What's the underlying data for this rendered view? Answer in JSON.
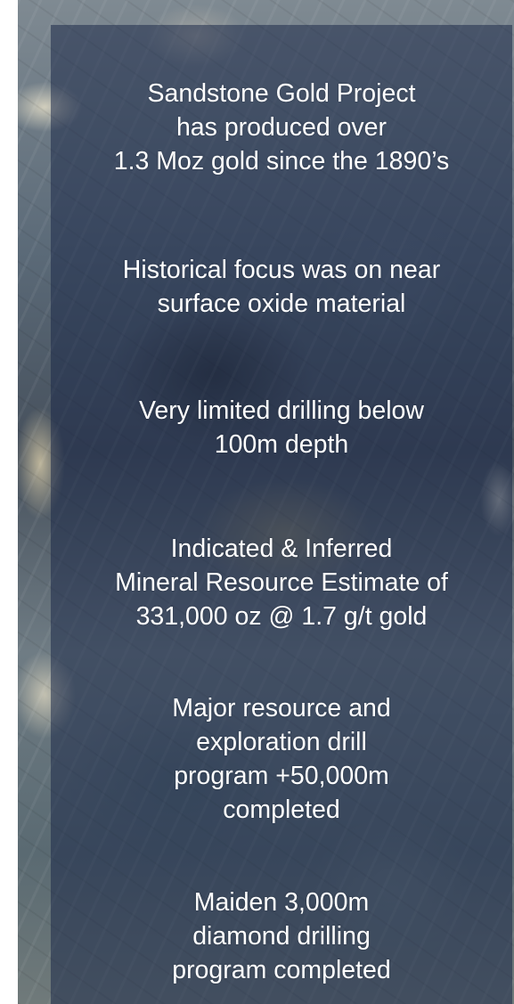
{
  "blocks": [
    {
      "lines": [
        "Sandstone Gold Project",
        "has produced over",
        "1.3 Moz gold since the 1890’s"
      ]
    },
    {
      "lines": [
        "Historical focus was on near",
        "surface oxide material"
      ]
    },
    {
      "lines": [
        "Very limited drilling below",
        "100m depth"
      ]
    },
    {
      "lines": [
        "Indicated & Inferred",
        "Mineral Resource Estimate of",
        "331,000 oz @ 1.7 g/t gold"
      ]
    },
    {
      "lines": [
        "Major resource and",
        "exploration drill",
        "program +50,000m",
        "completed"
      ]
    },
    {
      "lines": [
        "Maiden 3,000m",
        "diamond drilling",
        "program completed"
      ]
    }
  ]
}
